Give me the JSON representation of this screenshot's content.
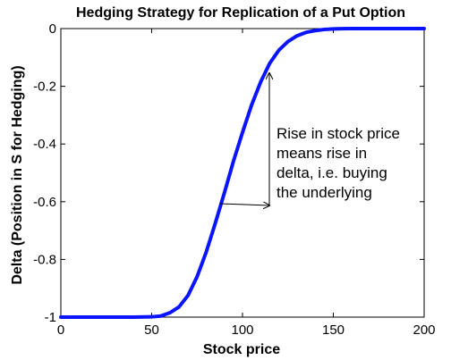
{
  "chart_data": {
    "type": "line",
    "title": "Hedging Strategy for Replication of a Put Option",
    "xlabel": "Stock price",
    "ylabel": "Delta (Position in S for Hedging)",
    "xlim": [
      0,
      200
    ],
    "ylim": [
      -1,
      0
    ],
    "xticks": [
      "0",
      "50",
      "100",
      "150",
      "200"
    ],
    "yticks": [
      "0",
      "-0.2",
      "-0.4",
      "-0.6",
      "-0.8",
      "-1"
    ],
    "grid": false,
    "series_color": "#0a14ff",
    "series": [
      {
        "x": [
          0,
          20,
          40,
          50,
          55,
          60,
          65,
          70,
          75,
          80,
          85,
          90,
          95,
          100,
          105,
          110,
          115,
          120,
          125,
          130,
          135,
          140,
          145,
          150,
          160,
          175,
          200
        ],
        "y": [
          -1.0,
          -1.0,
          -1.0,
          -0.999,
          -0.996,
          -0.985,
          -0.965,
          -0.925,
          -0.86,
          -0.775,
          -0.675,
          -0.57,
          -0.46,
          -0.36,
          -0.265,
          -0.185,
          -0.12,
          -0.075,
          -0.045,
          -0.025,
          -0.013,
          -0.007,
          -0.003,
          -0.001,
          0.0,
          0.0,
          0.0
        ]
      }
    ],
    "annotations": [
      {
        "lines": [
          "Rise in stock price",
          "means rise in",
          "delta, i.e. buying",
          "the underlying"
        ]
      }
    ]
  }
}
